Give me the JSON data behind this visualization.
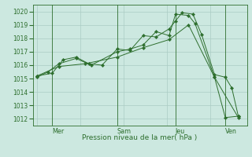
{
  "background_color": "#cce8e0",
  "grid_color": "#aaccC4",
  "line_color": "#2d6e2d",
  "marker_color": "#2d6e2d",
  "title": "Pression niveau de la mer( hPa )",
  "ylim": [
    1011.5,
    1020.5
  ],
  "yticks": [
    1012,
    1013,
    1014,
    1015,
    1016,
    1017,
    1018,
    1019,
    1020
  ],
  "day_labels": [
    "Mer",
    "Sam",
    "Jeu",
    "Ven"
  ],
  "day_positions": [
    0.07,
    0.37,
    0.64,
    0.87
  ],
  "vline_x": [
    0.07,
    0.37,
    0.64,
    0.87
  ],
  "series1_x": [
    0.0,
    0.07,
    0.12,
    0.18,
    0.24,
    0.3,
    0.37,
    0.43,
    0.49,
    0.55,
    0.61,
    0.64,
    0.67,
    0.72,
    0.76,
    0.82,
    0.87,
    0.9,
    0.93
  ],
  "series1_y": [
    1015.2,
    1015.4,
    1016.4,
    1016.6,
    1016.1,
    1016.0,
    1017.2,
    1017.1,
    1018.2,
    1018.1,
    1018.7,
    1019.3,
    1019.9,
    1019.8,
    1018.3,
    1015.3,
    1015.1,
    1014.3,
    1012.2
  ],
  "series2_x": [
    0.0,
    0.05,
    0.1,
    0.18,
    0.25,
    0.37,
    0.43,
    0.49,
    0.55,
    0.61,
    0.64,
    0.7,
    0.73,
    0.82,
    0.87,
    0.93
  ],
  "series2_y": [
    1015.1,
    1015.5,
    1016.1,
    1016.5,
    1016.0,
    1017.0,
    1017.2,
    1017.5,
    1018.5,
    1018.2,
    1019.8,
    1019.7,
    1019.1,
    1015.1,
    1012.1,
    1012.2
  ],
  "series3_x": [
    0.0,
    0.1,
    0.22,
    0.37,
    0.49,
    0.61,
    0.7,
    0.82,
    0.93
  ],
  "series3_y": [
    1015.2,
    1015.9,
    1016.1,
    1016.6,
    1017.3,
    1017.9,
    1019.0,
    1015.1,
    1012.1
  ],
  "xlim": [
    -0.02,
    0.97
  ],
  "title_fontsize": 6.5,
  "tick_fontsize": 5.5,
  "label_fontsize": 5.8
}
